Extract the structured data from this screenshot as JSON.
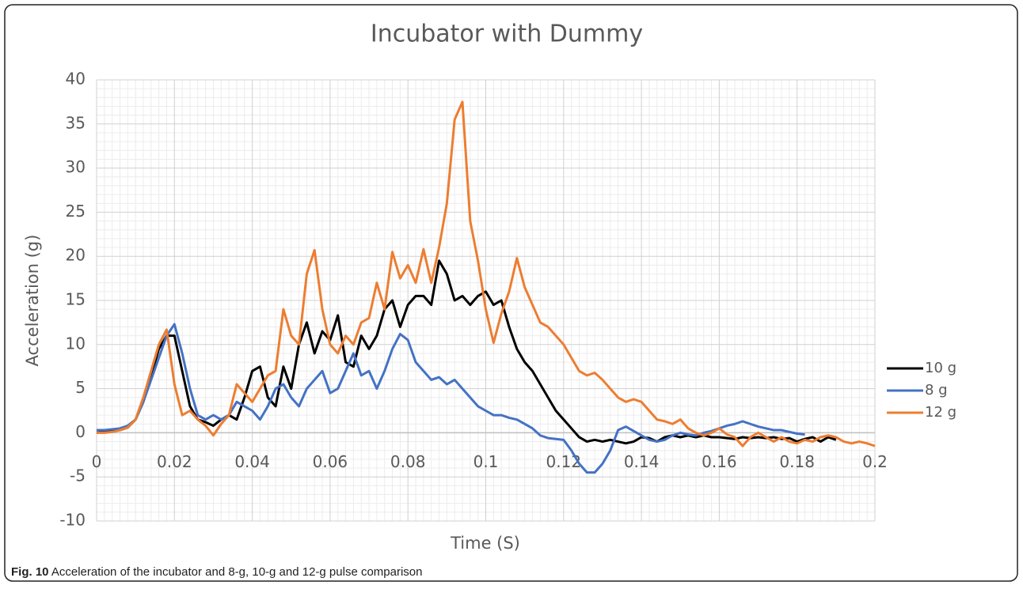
{
  "chart_data": {
    "type": "line",
    "title": "Incubator with Dummy",
    "x_label": "Time (S)",
    "y_label": "Acceleration (g)",
    "x": [
      0,
      0.002,
      0.004,
      0.006,
      0.008,
      0.01,
      0.012,
      0.014,
      0.016,
      0.018,
      0.02,
      0.022,
      0.024,
      0.026,
      0.028,
      0.03,
      0.032,
      0.034,
      0.036,
      0.038,
      0.04,
      0.042,
      0.044,
      0.046,
      0.048,
      0.05,
      0.052,
      0.054,
      0.056,
      0.058,
      0.06,
      0.062,
      0.064,
      0.066,
      0.068,
      0.07,
      0.072,
      0.074,
      0.076,
      0.078,
      0.08,
      0.082,
      0.084,
      0.086,
      0.088,
      0.09,
      0.092,
      0.094,
      0.096,
      0.098,
      0.1,
      0.102,
      0.104,
      0.106,
      0.108,
      0.11,
      0.112,
      0.114,
      0.116,
      0.118,
      0.12,
      0.122,
      0.124,
      0.126,
      0.128,
      0.13,
      0.132,
      0.134,
      0.136,
      0.138,
      0.14,
      0.142,
      0.144,
      0.146,
      0.148,
      0.15,
      0.152,
      0.154,
      0.156,
      0.158,
      0.16,
      0.162,
      0.164,
      0.166,
      0.168,
      0.17,
      0.172,
      0.174,
      0.176,
      0.178,
      0.18,
      0.182,
      0.184,
      0.186,
      0.188,
      0.19,
      0.192,
      0.194,
      0.196,
      0.198,
      0.2
    ],
    "series": [
      {
        "name": "10 g",
        "color": "#000000",
        "values": [
          0,
          0.1,
          0.2,
          0.3,
          0.6,
          1.5,
          3.5,
          6.5,
          9.5,
          11,
          11,
          7,
          3,
          1.5,
          1.2,
          0.8,
          1.5,
          2,
          1.5,
          4,
          7,
          7.5,
          4,
          3,
          7.5,
          5,
          10,
          12.5,
          9,
          11.5,
          10.5,
          13.3,
          8,
          7.5,
          11,
          9.5,
          11,
          14,
          15,
          12,
          14.5,
          15.5,
          15.5,
          14.5,
          19.5,
          18,
          15,
          15.5,
          14.5,
          15.5,
          16,
          14.5,
          15,
          12,
          9.5,
          8,
          7,
          5.5,
          4,
          2.5,
          1.5,
          0.5,
          -0.5,
          -1,
          -0.8,
          -1,
          -0.8,
          -1,
          -1.2,
          -1,
          -0.5,
          -0.6,
          -1,
          -0.5,
          -0.3,
          -0.5,
          -0.3,
          -0.5,
          -0.3,
          -0.5,
          -0.5,
          -0.6,
          -0.7,
          -0.5,
          -0.6,
          -0.5,
          -0.6,
          -0.5,
          -0.7,
          -0.6,
          -1,
          -0.7,
          -0.5,
          -1,
          -0.5,
          -0.8,
          null,
          null,
          null,
          null,
          null
        ]
      },
      {
        "name": "8 g",
        "color": "#4472c4",
        "values": [
          0.3,
          0.3,
          0.4,
          0.5,
          0.8,
          1.5,
          3.5,
          6,
          8.5,
          11,
          12.3,
          9,
          5,
          2,
          1.5,
          2,
          1.5,
          2,
          3.5,
          3,
          2.5,
          1.5,
          3,
          5,
          5.5,
          4,
          3,
          5,
          6,
          7,
          4.5,
          5,
          7,
          9,
          6.5,
          7,
          5,
          7,
          9.5,
          11.2,
          10.5,
          8,
          7,
          6,
          6.3,
          5.5,
          6,
          5,
          4,
          3,
          2.5,
          2,
          2,
          1.7,
          1.5,
          1,
          0.5,
          -0.3,
          -0.6,
          -0.7,
          -0.8,
          -2,
          -3.5,
          -4.5,
          -4.5,
          -3.5,
          -2,
          0.3,
          0.7,
          0.2,
          -0.3,
          -0.8,
          -1,
          -0.8,
          -0.3,
          0,
          -0.2,
          -0.3,
          0,
          0.2,
          0.5,
          0.8,
          1,
          1.3,
          1,
          0.7,
          0.5,
          0.3,
          0.3,
          0.1,
          -0.1,
          -0.2,
          null,
          null,
          null,
          null,
          null,
          null,
          null,
          null,
          null
        ]
      },
      {
        "name": "12 g",
        "color": "#ed7d31",
        "values": [
          0,
          0,
          0.1,
          0.3,
          0.6,
          1.5,
          4,
          7,
          10,
          11.7,
          5.5,
          2,
          2.5,
          1.5,
          0.8,
          -0.3,
          1,
          2,
          5.5,
          4.5,
          3.5,
          5,
          6.5,
          7,
          14,
          11,
          10,
          18,
          20.7,
          14,
          10,
          9,
          11,
          10,
          12.5,
          13,
          17,
          14,
          20.5,
          17.5,
          19,
          17,
          20.8,
          17,
          21,
          26,
          35.5,
          37.5,
          24,
          19.5,
          14,
          10.2,
          13.5,
          16,
          19.8,
          16.5,
          14.5,
          12.5,
          12,
          11,
          10,
          8.5,
          7,
          6.5,
          6.8,
          6,
          5,
          4,
          3.5,
          3.8,
          3.5,
          2.5,
          1.5,
          1.3,
          1,
          1.5,
          0.5,
          0,
          -0.3,
          0,
          0.5,
          -0.2,
          -0.5,
          -1.5,
          -0.5,
          0,
          -0.5,
          -1,
          -0.5,
          -1,
          -1.2,
          -0.8,
          -1,
          -0.5,
          -0.3,
          -0.5,
          -1,
          -1.2,
          -1,
          -1.2,
          -1.5
        ]
      }
    ],
    "xlim": [
      0,
      0.2
    ],
    "xticks": [
      0,
      0.02,
      0.04,
      0.06,
      0.08,
      0.1,
      0.12,
      0.14,
      0.16,
      0.18,
      0.2
    ],
    "ylim": [
      -10,
      40
    ],
    "yticks": [
      -10,
      -5,
      0,
      5,
      10,
      15,
      20,
      25,
      30,
      35,
      40
    ],
    "grid": true,
    "minor_grid": true,
    "legend": "right"
  },
  "caption": {
    "label": "Fig. 10",
    "text": "Acceleration of the incubator and 8-g, 10-g and 12-g pulse comparison"
  }
}
